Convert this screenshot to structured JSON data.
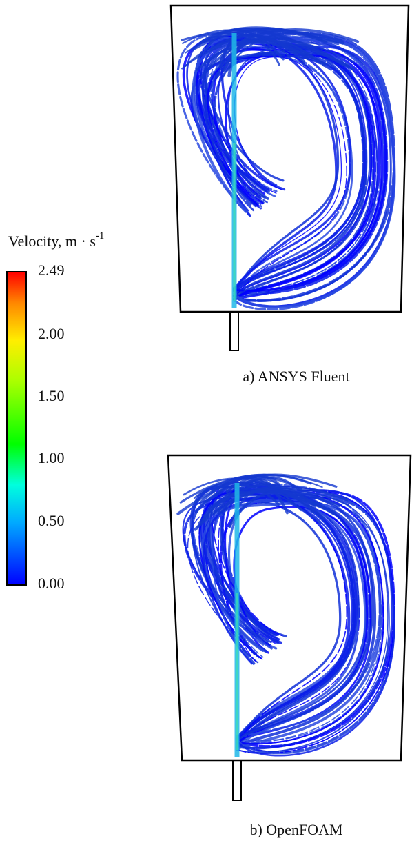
{
  "legend": {
    "title": "Velocity, m · s",
    "superscript": "-1",
    "ticks": [
      "2.49",
      "2.00",
      "1.50",
      "1.00",
      "0.50",
      "0.00"
    ]
  },
  "panels": [
    {
      "caption": "a) ANSYS Fluent"
    },
    {
      "caption": "b) OpenFOAM"
    }
  ]
}
